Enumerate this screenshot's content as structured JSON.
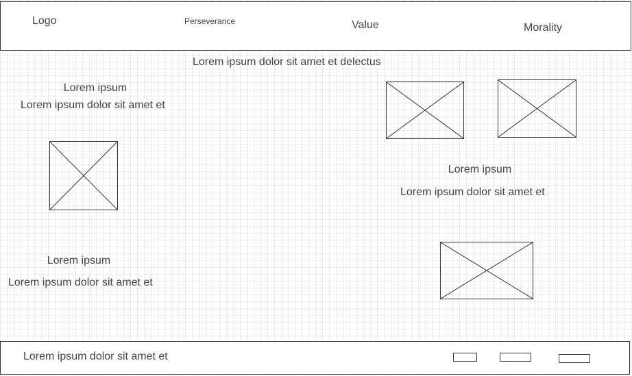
{
  "header": {
    "logo": "Logo",
    "nav": {
      "perseverance": "Perseverance",
      "value": "Value",
      "morality": "Morality"
    }
  },
  "main": {
    "headline": "Lorem ipsum dolor sit amet et delectus",
    "block_left_top": {
      "title": "Lorem ipsum",
      "text": "Lorem ipsum dolor sit amet et"
    },
    "block_right": {
      "title": "Lorem ipsum",
      "text": "Lorem ipsum dolor sit amet et"
    },
    "block_left_bottom": {
      "title": "Lorem ipsum",
      "text": "Lorem ipsum dolor sit amet et"
    }
  },
  "footer": {
    "text": "Lorem ipsum dolor sit amet et"
  }
}
